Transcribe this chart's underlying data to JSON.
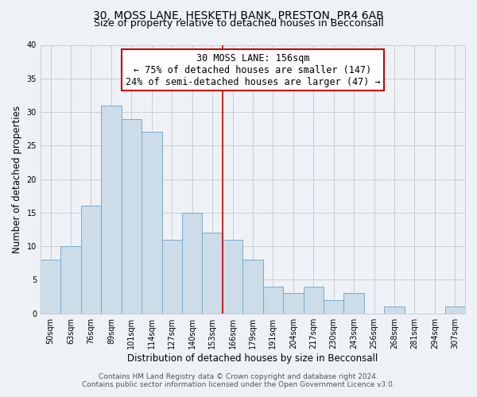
{
  "title": "30, MOSS LANE, HESKETH BANK, PRESTON, PR4 6AB",
  "subtitle": "Size of property relative to detached houses in Becconsall",
  "xlabel": "Distribution of detached houses by size in Becconsall",
  "ylabel": "Number of detached properties",
  "bar_labels": [
    "50sqm",
    "63sqm",
    "76sqm",
    "89sqm",
    "101sqm",
    "114sqm",
    "127sqm",
    "140sqm",
    "153sqm",
    "166sqm",
    "179sqm",
    "191sqm",
    "204sqm",
    "217sqm",
    "230sqm",
    "243sqm",
    "256sqm",
    "268sqm",
    "281sqm",
    "294sqm",
    "307sqm"
  ],
  "bar_values": [
    8,
    10,
    16,
    31,
    29,
    27,
    11,
    15,
    12,
    11,
    8,
    4,
    3,
    4,
    2,
    3,
    0,
    1,
    0,
    0,
    1
  ],
  "bar_color": "#ccdce8",
  "bar_edge_color": "#7aabcc",
  "vline_x": 8.5,
  "vline_color": "#cc0000",
  "annotation_line1": "30 MOSS LANE: 156sqm",
  "annotation_line2": "← 75% of detached houses are smaller (147)",
  "annotation_line3": "24% of semi-detached houses are larger (47) →",
  "annotation_box_color": "#ffffff",
  "annotation_box_edge_color": "#cc0000",
  "ylim": [
    0,
    40
  ],
  "yticks": [
    0,
    5,
    10,
    15,
    20,
    25,
    30,
    35,
    40
  ],
  "grid_color": "#cccccc",
  "bg_color": "#eef2f7",
  "footer_line1": "Contains HM Land Registry data © Crown copyright and database right 2024.",
  "footer_line2": "Contains public sector information licensed under the Open Government Licence v3.0.",
  "title_fontsize": 10,
  "subtitle_fontsize": 9,
  "annotation_fontsize": 8.5,
  "tick_fontsize": 7,
  "xlabel_fontsize": 8.5,
  "ylabel_fontsize": 8.5,
  "footer_fontsize": 6.5
}
